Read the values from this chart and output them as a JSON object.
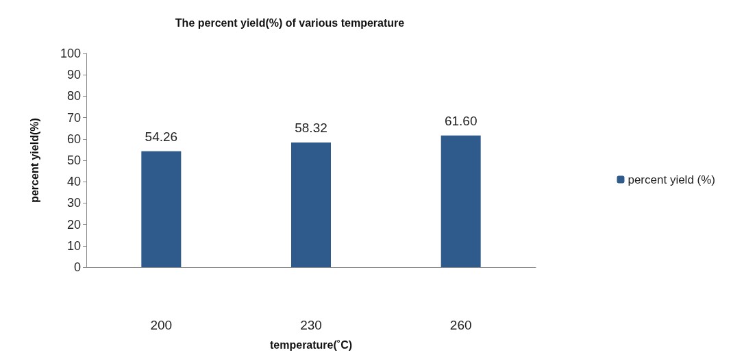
{
  "chart_data": {
    "type": "bar",
    "title": "The percent yield(%) of various temperature",
    "xlabel": "temperature(˚C)",
    "ylabel": "percent yield(%)",
    "categories": [
      "200",
      "230",
      "260"
    ],
    "series": [
      {
        "name": "percent yield (%)",
        "color": "#2e5a8c",
        "values": [
          54.26,
          58.32,
          61.6
        ],
        "value_labels": [
          "54.26",
          "58.32",
          "61.60"
        ]
      }
    ],
    "ylim": [
      0,
      100
    ],
    "yticks": [
      0,
      10,
      20,
      30,
      40,
      50,
      60,
      70,
      80,
      90,
      100
    ],
    "grid": false,
    "legend": "right"
  }
}
